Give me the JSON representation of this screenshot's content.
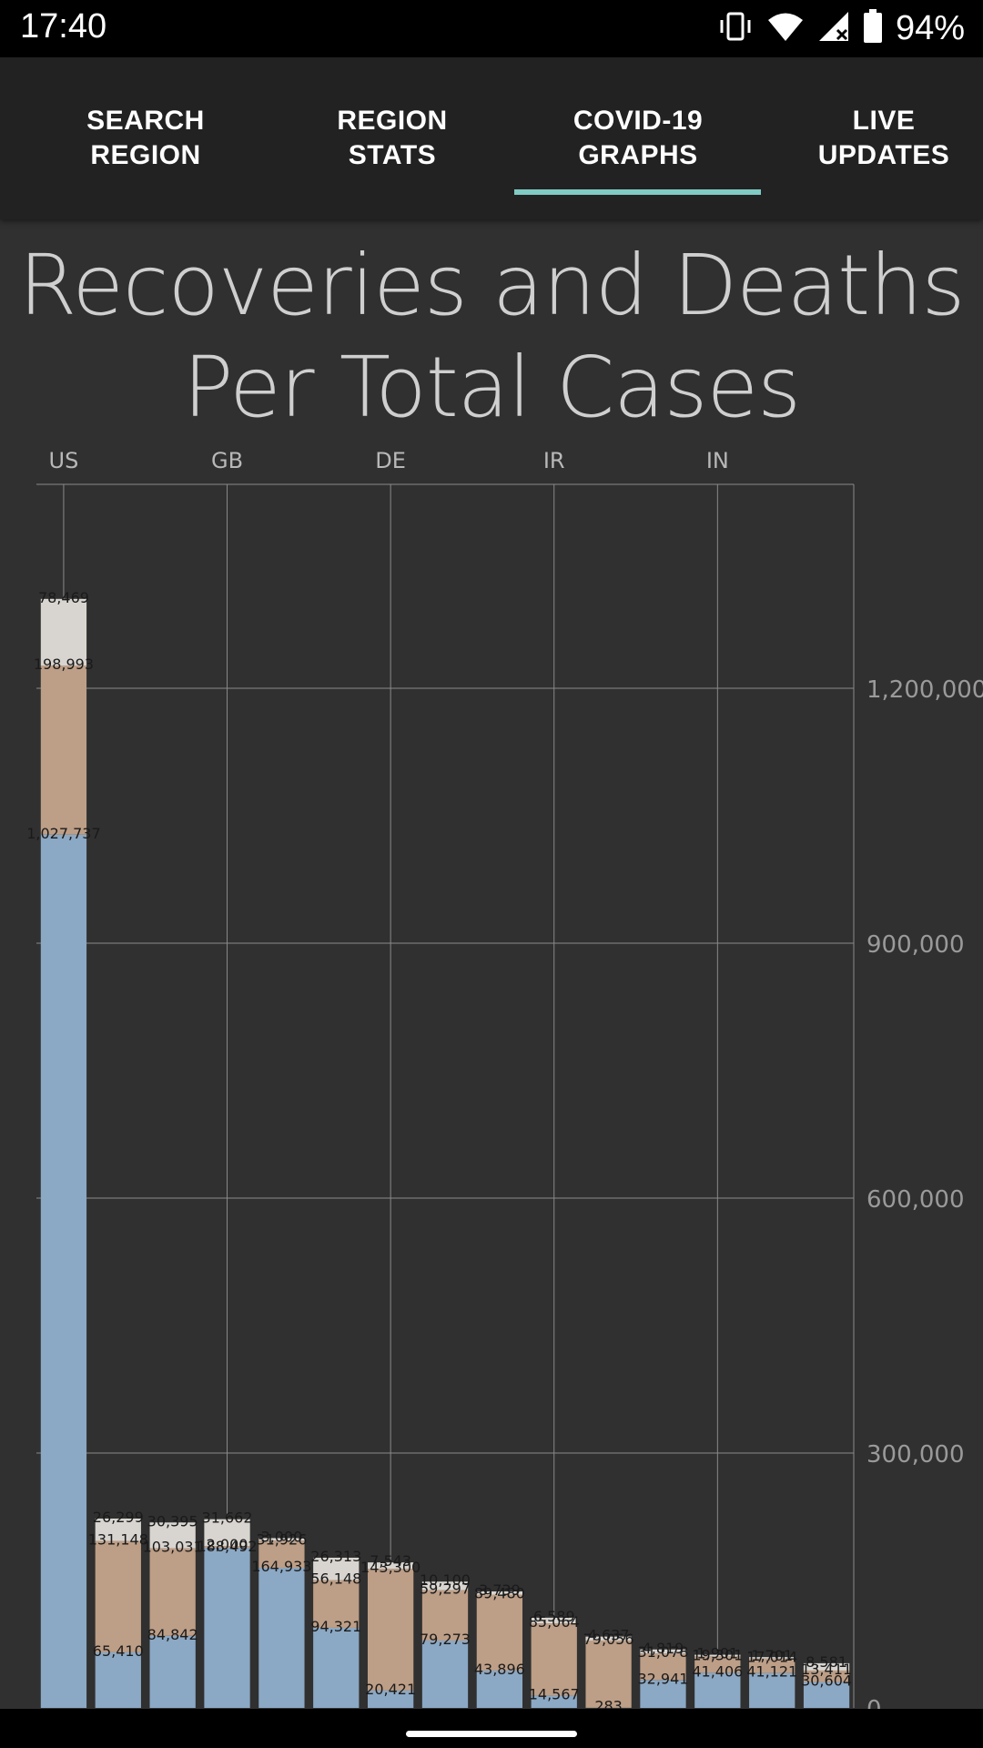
{
  "status_bar": {
    "time": "17:40",
    "battery_percent": "94%",
    "icons": [
      "vibrate-icon",
      "wifi-icon",
      "cellular-no-data-icon",
      "battery-icon"
    ]
  },
  "tabs": [
    {
      "line1": "SEARCH",
      "line2": "REGION",
      "selected": false
    },
    {
      "line1": "REGION",
      "line2": "STATS",
      "selected": false
    },
    {
      "line1": "COVID-19",
      "line2": "GRAPHS",
      "selected": true
    },
    {
      "line1": "LIVE",
      "line2": "UPDATES",
      "selected": false
    }
  ],
  "colors": {
    "accent": "#80cbc4",
    "active_cases": "#8ba8c4",
    "recovered": "#bd9e86",
    "deaths": "#d8d5d0",
    "background": "#303030"
  },
  "chart_data": {
    "type": "bar",
    "stacked": true,
    "title_line1": "Recoveries and Deaths",
    "title_line2": "Per Total Cases",
    "x_tick_labels": [
      {
        "index": 0,
        "label": "US"
      },
      {
        "index": 3,
        "label": "GB"
      },
      {
        "index": 6,
        "label": "DE"
      },
      {
        "index": 9,
        "label": "IR"
      },
      {
        "index": 12,
        "label": "IN"
      }
    ],
    "y_ticks": [
      0,
      300000,
      600000,
      900000,
      1200000
    ],
    "y_tick_labels": [
      "0",
      "300,000",
      "600,000",
      "900,000",
      "1,200,000"
    ],
    "ylim": [
      0,
      1440000
    ],
    "grid": true,
    "y_axis_side": "right",
    "series": [
      {
        "key": "active",
        "color": "#8ba8c4",
        "values": [
          1027737,
          65410,
          84842,
          188492,
          164933,
          94321,
          20421,
          79273,
          43896,
          14567,
          283,
          32941,
          41406,
          41121,
          30604
        ]
      },
      {
        "key": "recovered",
        "color": "#bd9e86",
        "values": [
          198993,
          131148,
          103031,
          2000,
          31926,
          56148,
          143300,
          59297,
          89480,
          85064,
          79056,
          31078,
          19301,
          17014,
          13411
        ]
      },
      {
        "key": "deaths",
        "color": "#d8d5d0",
        "values": [
          78469,
          26299,
          30395,
          31662,
          3000,
          26313,
          7543,
          10100,
          3739,
          6589,
          4637,
          4819,
          1901,
          1701,
          8581
        ]
      }
    ],
    "value_labels": {
      "active": [
        "1,027,737",
        "65,410",
        "84,842",
        "188,492",
        "164,933",
        "94,321",
        "20,421",
        "79,273",
        "43,896",
        "14,567",
        "283",
        "32,941",
        "41,406",
        "41,121",
        "30,604"
      ],
      "recovered": [
        "198,993",
        "131,148",
        "103,031",
        "2,000",
        "31,926",
        "56,148",
        "143,300",
        "59,297",
        "89,480",
        "85,064",
        "79,056",
        "31,078",
        "19,301",
        "17,014",
        "13,411"
      ],
      "deaths": [
        "78,469",
        "26,299",
        "30,395",
        "31,662",
        "3,000",
        "26,313",
        "7,543",
        "10,100",
        "3,739",
        "6,589",
        "4,637",
        "4,819",
        "1,901",
        "1,701",
        "8,581"
      ]
    }
  }
}
